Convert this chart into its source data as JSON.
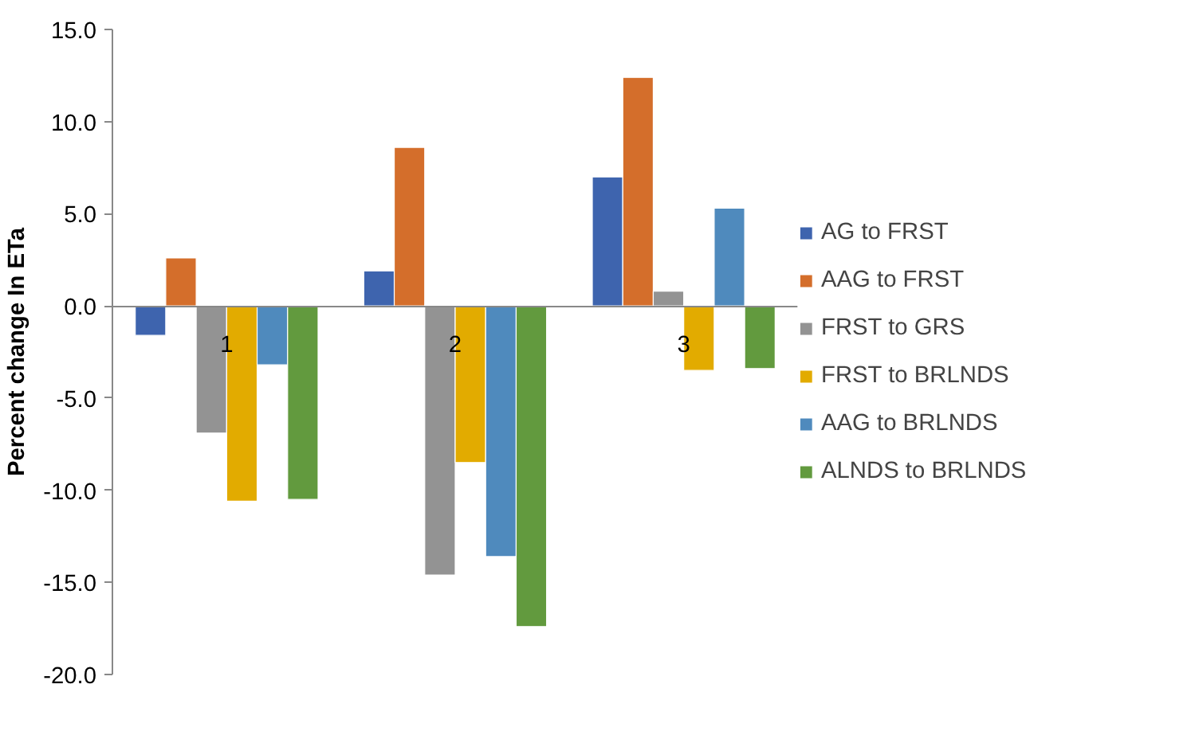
{
  "chart_data": {
    "type": "bar",
    "ylabel": "Percent change In ETa",
    "categories": [
      "1",
      "2",
      "3"
    ],
    "series": [
      {
        "name": "AG to FRST",
        "color": "#3e64ae",
        "values": [
          -1.6,
          1.9,
          7.0
        ]
      },
      {
        "name": "AAG to FRST",
        "color": "#d46e2b",
        "values": [
          2.6,
          8.6,
          12.4
        ]
      },
      {
        "name": "FRST to GRS",
        "color": "#939393",
        "values": [
          -6.9,
          -14.6,
          0.8
        ]
      },
      {
        "name": "FRST to BRLNDS",
        "color": "#e2ab00",
        "values": [
          -10.6,
          -8.5,
          -3.5
        ]
      },
      {
        "name": "AAG to BRLNDS",
        "color": "#4f8abd",
        "values": [
          -3.2,
          -13.6,
          5.3
        ]
      },
      {
        "name": "ALNDS to BRLNDS",
        "color": "#629a3e",
        "values": [
          -10.5,
          -17.4,
          -3.4
        ]
      }
    ],
    "ylim": [
      -20,
      15
    ],
    "yticks": [
      {
        "value": -20,
        "label": "-20.0"
      },
      {
        "value": -15,
        "label": "-15.0"
      },
      {
        "value": -10,
        "label": "-10.0"
      },
      {
        "value": -5,
        "label": "-5.0"
      },
      {
        "value": 0,
        "label": "0.0"
      },
      {
        "value": 5,
        "label": "5.0"
      },
      {
        "value": 10,
        "label": "10.0"
      },
      {
        "value": 15,
        "label": "15.0"
      }
    ],
    "grid": false,
    "legend": "right"
  }
}
